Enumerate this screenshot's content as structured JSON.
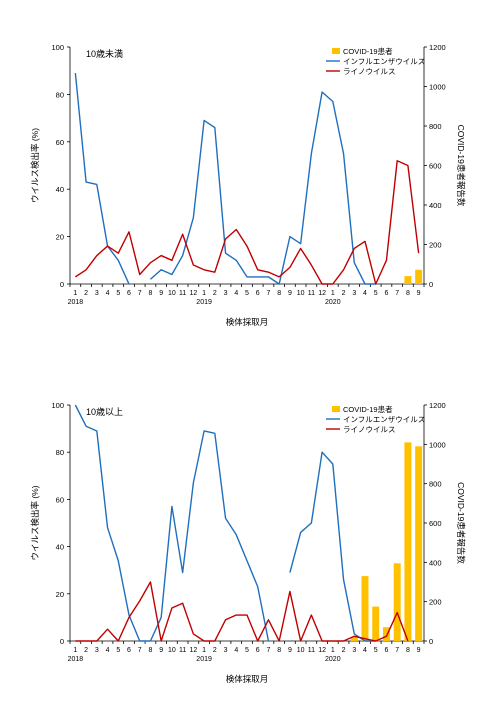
{
  "chart_data": [
    {
      "type": "bar+line",
      "panel_label": "10歳未満",
      "categories": [
        "1",
        "2",
        "3",
        "4",
        "5",
        "6",
        "7",
        "8",
        "9",
        "10",
        "11",
        "12",
        "1",
        "2",
        "3",
        "4",
        "5",
        "6",
        "7",
        "8",
        "9",
        "10",
        "11",
        "12",
        "1",
        "2",
        "3",
        "4",
        "5",
        "6",
        "7",
        "8",
        "9"
      ],
      "year_labels": [
        {
          "index": 0,
          "text": "2018"
        },
        {
          "index": 12,
          "text": "2019"
        },
        {
          "index": 24,
          "text": "2020"
        }
      ],
      "xlabel": "検体採取月",
      "ylabel": "ウイルス検出率 (%)",
      "ylabel2": "COVID-19患者報告数",
      "ylim": [
        0,
        100
      ],
      "ylim2": [
        0,
        1200
      ],
      "yticks": [
        "0",
        "20",
        "40",
        "60",
        "80",
        "100"
      ],
      "yticks2": [
        "0",
        "200",
        "400",
        "600",
        "800",
        "1000",
        "1200"
      ],
      "series": [
        {
          "name": "COVID-19患者",
          "kind": "bar",
          "axis": "right",
          "color": "#FFC000",
          "values": [
            null,
            null,
            null,
            null,
            null,
            null,
            null,
            null,
            null,
            null,
            null,
            null,
            null,
            null,
            null,
            null,
            null,
            null,
            null,
            null,
            null,
            null,
            null,
            null,
            null,
            null,
            null,
            null,
            null,
            null,
            null,
            40,
            72
          ]
        },
        {
          "name": "インフルエンザウイルス",
          "kind": "line",
          "axis": "left",
          "color": "#1F6FBF",
          "values": [
            89,
            43,
            42,
            16,
            10,
            0,
            null,
            2,
            6,
            4,
            12,
            28,
            69,
            66,
            13,
            10,
            3,
            3,
            3,
            0,
            20,
            17,
            55,
            81,
            77,
            55,
            9,
            0,
            0,
            null,
            null,
            null,
            null
          ]
        },
        {
          "name": "ライノウイルス",
          "kind": "line",
          "axis": "left",
          "color": "#C00000",
          "values": [
            3,
            6,
            12,
            16,
            13,
            22,
            4,
            9,
            12,
            10,
            21,
            8,
            6,
            5,
            19,
            23,
            16,
            6,
            5,
            3,
            7,
            15,
            8,
            0,
            0,
            6,
            15,
            18,
            0,
            10,
            52,
            50,
            13
          ]
        }
      ],
      "legend_position": "top-right",
      "grid": false
    },
    {
      "type": "bar+line",
      "panel_label": "10歳以上",
      "categories": [
        "1",
        "2",
        "3",
        "4",
        "5",
        "6",
        "7",
        "8",
        "9",
        "10",
        "11",
        "12",
        "1",
        "2",
        "3",
        "4",
        "5",
        "6",
        "7",
        "8",
        "9",
        "10",
        "11",
        "12",
        "1",
        "2",
        "3",
        "4",
        "5",
        "6",
        "7",
        "8",
        "9"
      ],
      "year_labels": [
        {
          "index": 0,
          "text": "2018"
        },
        {
          "index": 12,
          "text": "2019"
        },
        {
          "index": 24,
          "text": "2020"
        }
      ],
      "xlabel": "検体採取月",
      "ylabel": "ウイルス検出率 (%)",
      "ylabel2": "COVID-19患者報告数",
      "ylim": [
        0,
        100
      ],
      "ylim2": [
        0,
        1200
      ],
      "yticks": [
        "0",
        "20",
        "40",
        "60",
        "80",
        "100"
      ],
      "yticks2": [
        "0",
        "200",
        "400",
        "600",
        "800",
        "1000",
        "1200"
      ],
      "series": [
        {
          "name": "COVID-19患者",
          "kind": "bar",
          "axis": "right",
          "color": "#FFC000",
          "values": [
            null,
            null,
            null,
            null,
            null,
            null,
            null,
            null,
            null,
            null,
            null,
            null,
            null,
            null,
            null,
            null,
            null,
            null,
            null,
            null,
            null,
            null,
            null,
            null,
            null,
            null,
            20,
            330,
            175,
            70,
            395,
            1010,
            990
          ]
        },
        {
          "name": "インフルエンザウイルス",
          "kind": "line",
          "axis": "left",
          "color": "#1F6FBF",
          "values": [
            100,
            91,
            89,
            48,
            34,
            11,
            0,
            0,
            10,
            57,
            29,
            67,
            89,
            88,
            52,
            45,
            34,
            23,
            0,
            null,
            29,
            46,
            50,
            80,
            75,
            26,
            3,
            0,
            0,
            null,
            null,
            null,
            null
          ]
        },
        {
          "name": "ライノウイルス",
          "kind": "line",
          "axis": "left",
          "color": "#C00000",
          "values": [
            0,
            0,
            0,
            5,
            0,
            10,
            17,
            25,
            0,
            14,
            16,
            3,
            0,
            0,
            9,
            11,
            11,
            0,
            9,
            0,
            21,
            0,
            11,
            0,
            0,
            0,
            2,
            1,
            0,
            2,
            12,
            0,
            null
          ]
        }
      ],
      "legend_position": "top-right",
      "grid": false
    }
  ]
}
